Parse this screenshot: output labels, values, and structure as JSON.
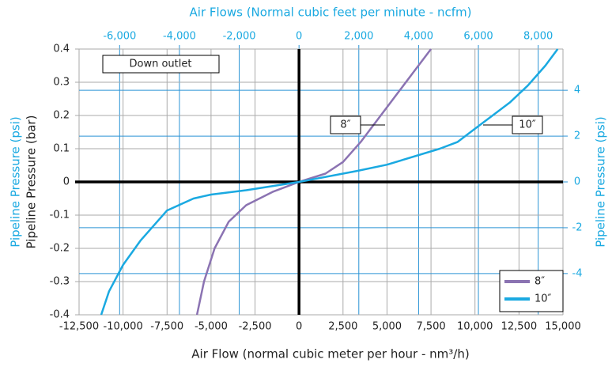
{
  "chart_data": {
    "type": "line",
    "x2_label": "Air Flows (Normal cubic feet per minute - ncfm)",
    "x_label": "Air Flow (normal cubic meter per hour - nm³/h)",
    "y_label": "Pipeline Pressure (bar)",
    "y2_label": "Pipeline Pressure (psi)",
    "annotations": [
      "Down outlet"
    ],
    "xlim": [
      -12500,
      15000
    ],
    "xticks": [
      {
        "value": -12500,
        "label": "-12,500"
      },
      {
        "value": -10000,
        "label": "-10,000"
      },
      {
        "value": -7500,
        "label": "-7,500"
      },
      {
        "value": -5000,
        "label": "-5,000"
      },
      {
        "value": -2500,
        "label": "-2,500"
      },
      0,
      {
        "value": 2500,
        "label": "2,500"
      },
      {
        "value": 5000,
        "label": "5,000"
      },
      {
        "value": 7500,
        "label": "7,500"
      },
      {
        "value": 10000,
        "label": "10,000"
      },
      {
        "value": 12500,
        "label": "12,500"
      },
      {
        "value": 15000,
        "label": "15,000"
      }
    ],
    "x2lim": [
      -7357,
      8829
    ],
    "x2ticks": [
      {
        "value": -6000,
        "label": "-6,000"
      },
      {
        "value": -4000,
        "label": "-4,000"
      },
      {
        "value": -2000,
        "label": "-2,000"
      },
      0,
      {
        "value": 2000,
        "label": "2,000"
      },
      {
        "value": 4000,
        "label": "4,000"
      },
      {
        "value": 6000,
        "label": "6,000"
      },
      {
        "value": 8000,
        "label": "8,000"
      }
    ],
    "ylim": [
      -0.4,
      0.4
    ],
    "yticks": [
      -0.4,
      -0.3,
      -0.2,
      -0.1,
      0,
      0.1,
      0.2,
      0.3,
      0.4
    ],
    "y2lim": [
      -5.8,
      5.8
    ],
    "y2ticks": [
      -4,
      -2,
      0,
      2,
      4
    ],
    "grid": true,
    "legend": "lower right",
    "series": [
      {
        "name": "8″",
        "color": "#8b73b2",
        "x": [
          -5800,
          -5400,
          -4800,
          -4000,
          -3000,
          -1500,
          0,
          1500,
          2500,
          3500,
          4500,
          5500,
          6500,
          7500
        ],
        "values": [
          -0.4,
          -0.3,
          -0.2,
          -0.12,
          -0.07,
          -0.03,
          0,
          0.025,
          0.06,
          0.12,
          0.19,
          0.26,
          0.33,
          0.4
        ]
      },
      {
        "name": "10″",
        "color": "#1aa9e1",
        "x": [
          -11240,
          -10800,
          -10000,
          -9000,
          -7500,
          -6000,
          -5000,
          -3000,
          0,
          3300,
          5000,
          8000,
          9000,
          10000,
          11000,
          12000,
          13000,
          14000,
          14700
        ],
        "values": [
          -0.4,
          -0.33,
          -0.25,
          -0.176,
          -0.086,
          -0.05,
          -0.038,
          -0.025,
          0,
          0.033,
          0.052,
          0.1,
          0.12,
          0.16,
          0.2,
          0.24,
          0.29,
          0.35,
          0.4
        ]
      }
    ]
  }
}
